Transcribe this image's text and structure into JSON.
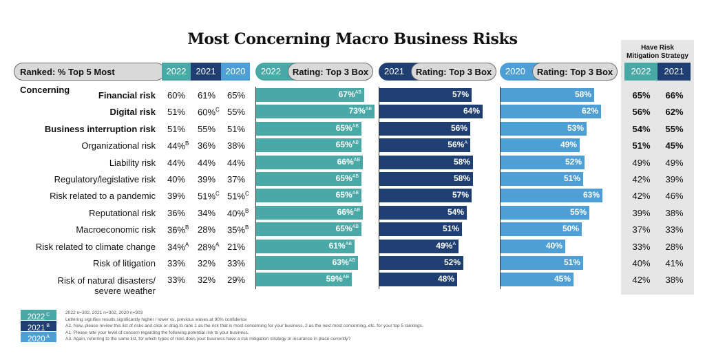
{
  "title": "Most Concerning Macro Business Risks",
  "header": {
    "ranked_label": "Ranked: % Top 5 Most Concerning",
    "years": [
      "2022",
      "2021",
      "2020"
    ],
    "rating_label": "Rating: Top 3 Box",
    "mitigation_label_1": "Have Risk",
    "mitigation_label_2": "Mitigation Strategy",
    "mitigation_years": [
      "2022",
      "2021"
    ]
  },
  "colors": {
    "y2022": "#4aa8a7",
    "y2021": "#1f3f73",
    "y2020": "#4d9fd6"
  },
  "chart_data": {
    "type": "bar",
    "title": "Most Concerning Macro Business Risks",
    "xlim": [
      0,
      100
    ],
    "categories": [
      "Financial risk",
      "Digital risk",
      "Business interruption risk",
      "Organizational risk",
      "Liability risk",
      "Regulatory/legislative risk",
      "Risk related to a pandemic",
      "Reputational risk",
      "Macroeconomic risk",
      "Risk related to climate change",
      "Risk of litigation",
      "Risk of natural disasters/ severe weather"
    ],
    "category_lines": [
      [
        "Financial risk"
      ],
      [
        "Digital risk"
      ],
      [
        "Business interruption risk"
      ],
      [
        "Organizational risk"
      ],
      [
        "Liability risk"
      ],
      [
        "Regulatory/legislative risk"
      ],
      [
        "Risk related to a pandemic"
      ],
      [
        "Reputational risk"
      ],
      [
        "Macroeconomic risk"
      ],
      [
        "Risk related to climate change"
      ],
      [
        "Risk of litigation"
      ],
      [
        "Risk of natural disasters/",
        "severe weather"
      ]
    ],
    "bold_rows": [
      true,
      true,
      true,
      false,
      false,
      false,
      false,
      false,
      false,
      false,
      false,
      false
    ],
    "top5": {
      "y2022": [
        {
          "v": "60%",
          "s": ""
        },
        {
          "v": "51%",
          "s": ""
        },
        {
          "v": "51%",
          "s": ""
        },
        {
          "v": "44%",
          "s": "B"
        },
        {
          "v": "44%",
          "s": ""
        },
        {
          "v": "40%",
          "s": ""
        },
        {
          "v": "39%",
          "s": ""
        },
        {
          "v": "36%",
          "s": ""
        },
        {
          "v": "36%",
          "s": "B"
        },
        {
          "v": "34%",
          "s": "A"
        },
        {
          "v": "33%",
          "s": ""
        },
        {
          "v": "33%",
          "s": ""
        }
      ],
      "y2021": [
        {
          "v": "61%",
          "s": ""
        },
        {
          "v": "60%",
          "s": "C"
        },
        {
          "v": "55%",
          "s": ""
        },
        {
          "v": "36%",
          "s": ""
        },
        {
          "v": "44%",
          "s": ""
        },
        {
          "v": "39%",
          "s": ""
        },
        {
          "v": "51%",
          "s": "C"
        },
        {
          "v": "34%",
          "s": ""
        },
        {
          "v": "28%",
          "s": ""
        },
        {
          "v": "28%",
          "s": "A"
        },
        {
          "v": "32%",
          "s": ""
        },
        {
          "v": "32%",
          "s": ""
        }
      ],
      "y2020": [
        {
          "v": "65%",
          "s": ""
        },
        {
          "v": "55%",
          "s": ""
        },
        {
          "v": "51%",
          "s": ""
        },
        {
          "v": "38%",
          "s": ""
        },
        {
          "v": "44%",
          "s": ""
        },
        {
          "v": "37%",
          "s": ""
        },
        {
          "v": "51%",
          "s": "C"
        },
        {
          "v": "40%",
          "s": "B"
        },
        {
          "v": "35%",
          "s": "B"
        },
        {
          "v": "21%",
          "s": ""
        },
        {
          "v": "33%",
          "s": ""
        },
        {
          "v": "29%",
          "s": ""
        }
      ]
    },
    "series": [
      {
        "name": "2022",
        "values": [
          67,
          73,
          65,
          65,
          66,
          65,
          65,
          66,
          65,
          61,
          63,
          59
        ],
        "sig": [
          "AB",
          "AB",
          "AB",
          "AB",
          "AB",
          "AB",
          "AB",
          "AB",
          "AB",
          "AB",
          "AB",
          "AB"
        ]
      },
      {
        "name": "2021",
        "values": [
          57,
          64,
          56,
          56,
          58,
          58,
          57,
          54,
          51,
          49,
          52,
          48
        ],
        "sig": [
          "",
          "",
          "",
          "A",
          "",
          "",
          "",
          "",
          "",
          "A",
          "",
          ""
        ]
      },
      {
        "name": "2020",
        "values": [
          58,
          62,
          53,
          49,
          52,
          51,
          63,
          55,
          50,
          40,
          51,
          45
        ],
        "sig": [
          "",
          "",
          "",
          "",
          "",
          "",
          "",
          "",
          "",
          "",
          "",
          ""
        ]
      }
    ],
    "mitigation": {
      "y2022": [
        "65%",
        "56%",
        "54%",
        "51%",
        "49%",
        "42%",
        "42%",
        "39%",
        "37%",
        "33%",
        "40%",
        "42%"
      ],
      "y2021": [
        "66%",
        "62%",
        "55%",
        "45%",
        "49%",
        "39%",
        "46%",
        "38%",
        "33%",
        "28%",
        "41%",
        "38%"
      ],
      "bold_rows": [
        true,
        true,
        true,
        true,
        false,
        false,
        false,
        false,
        false,
        false,
        false,
        false
      ]
    }
  },
  "legend": [
    {
      "year": "2022",
      "letter": "C"
    },
    {
      "year": "2021",
      "letter": "B"
    },
    {
      "year": "2020",
      "letter": "A"
    }
  ],
  "notes": [
    "2022 n=302, 2021 n=302, 2020 n=303",
    "Lettering signifies results significantly higher / lower vs. previous waves at 90% confidence",
    "A2. Now, please review this list of risks and click or drag to rank 1 as the risk that is most concerning for your business, 2 as the next most concerning, etc. for your top 5 rankings.",
    "A1. Please rate your level of concern regarding the following potential risk to your business.",
    "A3. Again, referring to the same list, for which types of risks does your business have a risk mitigation strategy or insurance in place currently?"
  ]
}
